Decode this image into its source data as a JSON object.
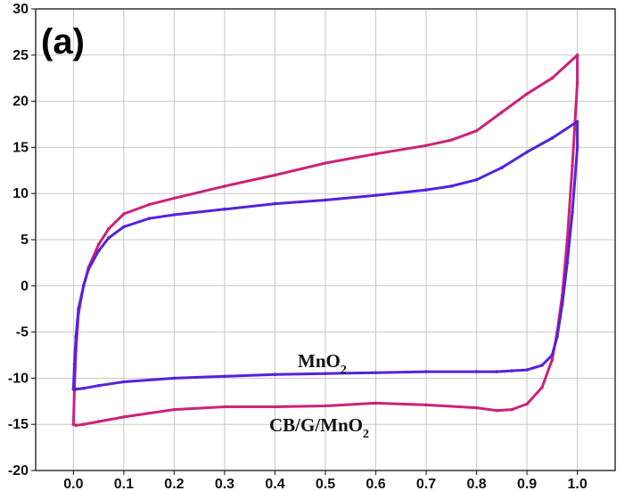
{
  "chart_data": {
    "type": "line",
    "panel_label": "(a)",
    "title": "",
    "xlabel": "",
    "ylabel": "",
    "xlim": [
      -0.075,
      1.075
    ],
    "ylim": [
      -20,
      30
    ],
    "xticks": [
      0.0,
      0.1,
      0.2,
      0.3,
      0.4,
      0.5,
      0.6,
      0.7,
      0.8,
      0.9,
      1.0
    ],
    "xtick_labels": [
      "0.0",
      "0.1",
      "0.2",
      "0.3",
      "0.4",
      "0.5",
      "0.6",
      "0.7",
      "0.8",
      "0.9",
      "1.0"
    ],
    "yticks": [
      -20,
      -15,
      -10,
      -5,
      0,
      5,
      10,
      15,
      20,
      25,
      30
    ],
    "ytick_labels": [
      "-20",
      "-15",
      "-10",
      "-5",
      "0",
      "5",
      "10",
      "15",
      "20",
      "25",
      "30"
    ],
    "grid": true,
    "series": [
      {
        "name": "CB/G/MnO2",
        "color": "#cc2277",
        "x": [
          0.0,
          0.002,
          0.005,
          0.01,
          0.02,
          0.03,
          0.05,
          0.07,
          0.1,
          0.15,
          0.2,
          0.3,
          0.4,
          0.5,
          0.6,
          0.7,
          0.75,
          0.8,
          0.85,
          0.9,
          0.95,
          1.0,
          1.0,
          0.99,
          0.98,
          0.97,
          0.96,
          0.95,
          0.93,
          0.9,
          0.87,
          0.84,
          0.8,
          0.7,
          0.6,
          0.5,
          0.4,
          0.3,
          0.2,
          0.1,
          0.05,
          0.02,
          0.005,
          0.0
        ],
        "y": [
          -15.0,
          -11.0,
          -7.0,
          -3.0,
          0.0,
          2.0,
          4.5,
          6.2,
          7.8,
          8.8,
          9.5,
          10.8,
          12.0,
          13.3,
          14.3,
          15.2,
          15.8,
          16.8,
          18.8,
          20.8,
          22.5,
          25.0,
          22.0,
          13.0,
          5.0,
          -1.0,
          -5.0,
          -8.0,
          -11.0,
          -12.8,
          -13.4,
          -13.5,
          -13.2,
          -12.9,
          -12.7,
          -13.0,
          -13.1,
          -13.1,
          -13.4,
          -14.2,
          -14.7,
          -15.0,
          -15.1,
          -15.0
        ]
      },
      {
        "name": "MnO2",
        "color": "#5522dd",
        "x": [
          0.0,
          0.002,
          0.005,
          0.01,
          0.02,
          0.03,
          0.05,
          0.07,
          0.1,
          0.15,
          0.2,
          0.3,
          0.4,
          0.5,
          0.6,
          0.7,
          0.75,
          0.8,
          0.85,
          0.9,
          0.95,
          1.0,
          1.0,
          0.99,
          0.98,
          0.97,
          0.96,
          0.95,
          0.93,
          0.9,
          0.87,
          0.84,
          0.8,
          0.7,
          0.6,
          0.5,
          0.4,
          0.3,
          0.2,
          0.1,
          0.05,
          0.02,
          0.005,
          0.0
        ],
        "y": [
          -11.2,
          -8.5,
          -5.5,
          -2.5,
          0.0,
          1.8,
          3.8,
          5.2,
          6.4,
          7.3,
          7.7,
          8.3,
          8.9,
          9.3,
          9.8,
          10.4,
          10.8,
          11.5,
          12.8,
          14.5,
          16.0,
          17.8,
          15.0,
          8.0,
          2.5,
          -2.0,
          -5.5,
          -7.5,
          -8.6,
          -9.1,
          -9.2,
          -9.3,
          -9.3,
          -9.3,
          -9.4,
          -9.5,
          -9.6,
          -9.8,
          -10.0,
          -10.4,
          -10.8,
          -11.1,
          -11.2,
          -11.2
        ]
      }
    ],
    "annotations": [
      {
        "text_main": "MnO",
        "text_sub": "2",
        "series": "MnO2"
      },
      {
        "text_main": "CB/G/MnO",
        "text_sub": "2",
        "series": "CB/G/MnO2"
      }
    ]
  }
}
